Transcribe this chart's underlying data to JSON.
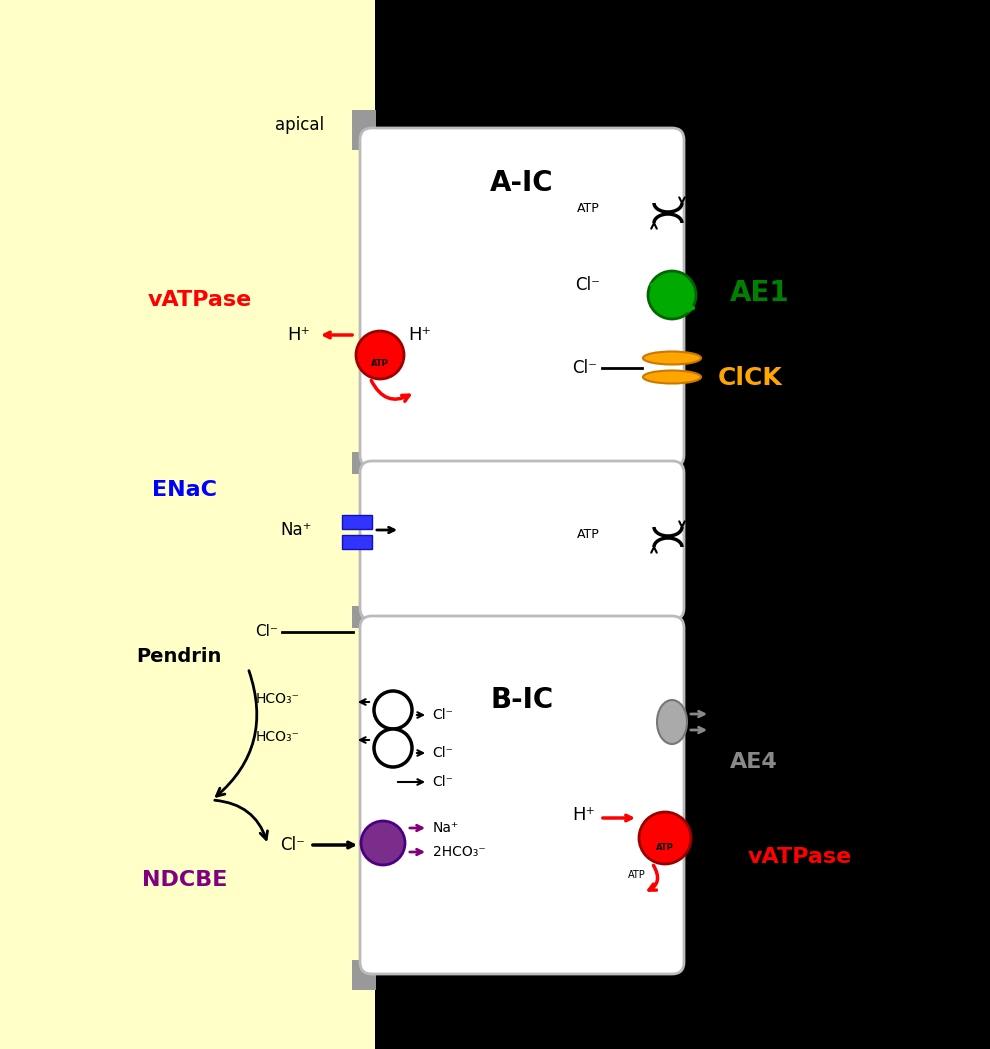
{
  "bg_left_color": "#FFFFC8",
  "bg_right_color": "#000000",
  "cell_fill": "#FFFFFF",
  "cell_edge": "#CCCCCC",
  "membrane_color": "#999999",
  "figsize": [
    9.9,
    10.49
  ],
  "dpi": 100,
  "apical_label": "apical",
  "aic_label": "A-IC",
  "bic_label": "B-IC",
  "vatpase_label_red": "vATPase",
  "enac_label": "ENaC",
  "pendrin_label": "Pendrin",
  "ndcbe_label": "NDCBE",
  "ae1_label": "AE1",
  "cick_label": "ClCK",
  "ae4_label": "AE4",
  "vatpase_label_red2": "vATPase",
  "atp_label": "ATP",
  "hplus": "H⁺",
  "clminus": "Cl⁻",
  "naplus": "Na⁺",
  "hco3minus": "HCO₃⁻",
  "2hco3minus": "2HCO₃⁻"
}
